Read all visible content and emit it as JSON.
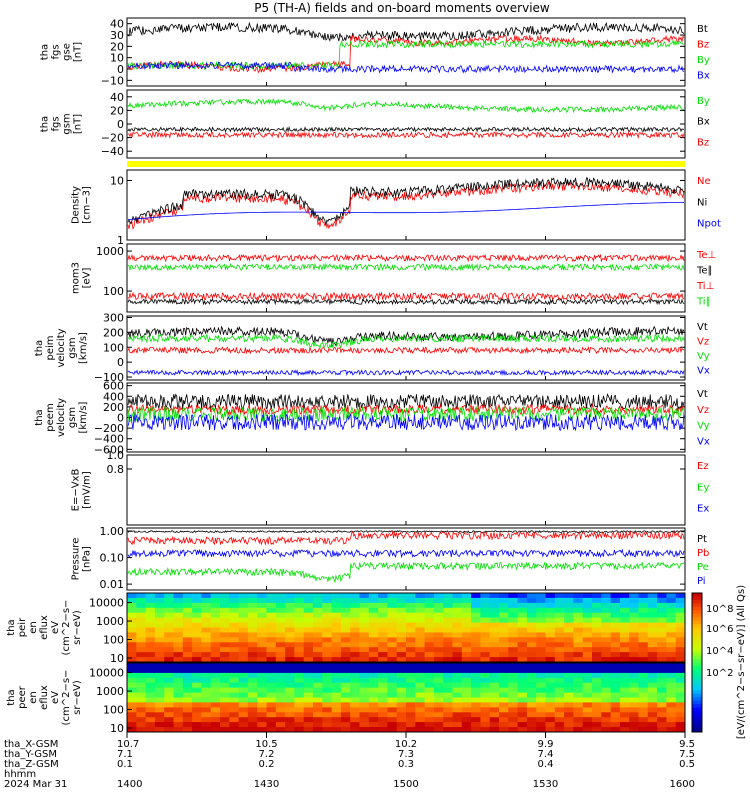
{
  "title": "P5 (TH-A) fields and on-board moments overview",
  "colors": {
    "black": "#000000",
    "red": "#ff0000",
    "green": "#00e000",
    "blue": "#0000ff",
    "yellow": "#ffff00"
  },
  "chart_data": {
    "type": "line",
    "time_ticks": [
      "1400",
      "1430",
      "1500",
      "1530",
      "1600"
    ],
    "ephemeris": {
      "labels": [
        "tha_X-GSM",
        "tha_Y-GSM",
        "tha_Z-GSM",
        "hhmm",
        "2024 Mar 31"
      ],
      "x_gsm": [
        "10.7",
        "10.5",
        "10.2",
        "9.9",
        "9.5"
      ],
      "y_gsm": [
        "7.1",
        "7.2",
        "7.3",
        "7.4",
        "7.5"
      ],
      "z_gsm": [
        "0.1",
        "0.2",
        "0.3",
        "0.4",
        "0.5"
      ]
    },
    "panels": [
      {
        "ylabel": [
          "tha",
          "fgs",
          "gse",
          "[nT]"
        ],
        "ylim": [
          -15,
          45
        ],
        "ticks": [
          "40",
          "30",
          "20",
          "10",
          "0",
          "−10"
        ],
        "tick_values": [
          40,
          30,
          20,
          10,
          0,
          -10
        ],
        "series": [
          {
            "name": "Bt",
            "color": "black"
          },
          {
            "name": "Bz",
            "color": "red"
          },
          {
            "name": "By",
            "color": "green"
          },
          {
            "name": "Bx",
            "color": "blue"
          }
        ]
      },
      {
        "ylabel": [
          "tha",
          "fgs",
          "gsm",
          "[nT]"
        ],
        "ylim": [
          -50,
          50
        ],
        "ticks": [
          "40",
          "20",
          "0",
          "−20",
          "−40"
        ],
        "tick_values": [
          40,
          20,
          0,
          -20,
          -40
        ],
        "series": [
          {
            "name": "By",
            "color": "green"
          },
          {
            "name": "Bx",
            "color": "black"
          },
          {
            "name": "Bz",
            "color": "red"
          }
        ]
      },
      {
        "ylabel": [
          "Density",
          "[cm−3]"
        ],
        "yscale": "log",
        "ylim": [
          1,
          15
        ],
        "ticks": [
          "10",
          "1"
        ],
        "tick_values": [
          10,
          1
        ],
        "series": [
          {
            "name": "Ne",
            "color": "red"
          },
          {
            "name": "Ni",
            "color": "black"
          },
          {
            "name": "Npot",
            "color": "blue"
          }
        ]
      },
      {
        "ylabel": [
          "mom3",
          "[eV]"
        ],
        "yscale": "log",
        "ylim": [
          30,
          1500
        ],
        "ticks": [
          "1000",
          "100"
        ],
        "tick_values": [
          1000,
          100
        ],
        "series": [
          {
            "name": "Te⊥",
            "color": "red"
          },
          {
            "name": "Te∥",
            "color": "black"
          },
          {
            "name": "Ti⊥",
            "color": "red"
          },
          {
            "name": "Ti∥",
            "color": "green"
          }
        ]
      },
      {
        "ylabel": [
          "tha",
          "peim",
          "velocity",
          "gsm",
          "[km/s]"
        ],
        "ylim": [
          -120,
          310
        ],
        "ticks": [
          "300",
          "200",
          "100",
          "0",
          "−100"
        ],
        "tick_values": [
          300,
          200,
          100,
          0,
          -100
        ],
        "series": [
          {
            "name": "Vt",
            "color": "black"
          },
          {
            "name": "Vz",
            "color": "red"
          },
          {
            "name": "Vy",
            "color": "green"
          },
          {
            "name": "Vx",
            "color": "blue"
          }
        ]
      },
      {
        "ylabel": [
          "tha",
          "peem",
          "velocity",
          "gsm",
          "[km/s]"
        ],
        "ylim": [
          -650,
          650
        ],
        "ticks": [
          "600",
          "400",
          "200",
          "0",
          "−200",
          "−400",
          "−600"
        ],
        "tick_values": [
          600,
          400,
          200,
          0,
          -200,
          -400,
          -600
        ],
        "series": [
          {
            "name": "Vt",
            "color": "black"
          },
          {
            "name": "Vz",
            "color": "red"
          },
          {
            "name": "Vy",
            "color": "green"
          },
          {
            "name": "Vx",
            "color": "blue"
          }
        ]
      },
      {
        "ylabel": [
          "E=−VxB",
          "[mV/m]"
        ],
        "ylim": [
          0,
          1
        ],
        "ticks": [
          "1.0",
          "0.8"
        ],
        "tick_values": [
          1,
          0.8
        ],
        "series": [
          {
            "name": "Ez",
            "color": "red"
          },
          {
            "name": "Ey",
            "color": "green"
          },
          {
            "name": "Ex",
            "color": "blue"
          }
        ]
      },
      {
        "ylabel": [
          "Pressure",
          "[nPa]"
        ],
        "yscale": "log",
        "ylim": [
          0.006,
          1.3
        ],
        "ticks": [
          "1.00",
          "0.10",
          "0.01"
        ],
        "tick_values": [
          1,
          0.1,
          0.01
        ],
        "series": [
          {
            "name": "Pt",
            "color": "black"
          },
          {
            "name": "Pb",
            "color": "red"
          },
          {
            "name": "Pe",
            "color": "green"
          },
          {
            "name": "Pi",
            "color": "blue"
          }
        ]
      }
    ],
    "spectrograms": [
      {
        "ylabel": [
          "tha",
          "peir",
          "en",
          "eflux",
          "eV",
          "(cm^2−s−",
          "sr−eV)"
        ],
        "yscale": "log",
        "ticks": [
          "10000",
          "1000",
          "100",
          "10"
        ],
        "tick_values": [
          10000,
          1000,
          100,
          10
        ]
      },
      {
        "ylabel": [
          "tha",
          "peer",
          "en",
          "eflux",
          "eV",
          "(cm^2−s−",
          "sr−eV)"
        ],
        "yscale": "log",
        "ticks": [
          "10000",
          "1000",
          "100",
          "10"
        ],
        "tick_values": [
          10000,
          1000,
          100,
          10
        ]
      }
    ],
    "colorbar": {
      "ticks": [
        "10^8",
        "10^6",
        "10^4",
        "10^2"
      ],
      "label": "[eV/(cm^2−s−sr−eV)] (All Qs)"
    }
  }
}
